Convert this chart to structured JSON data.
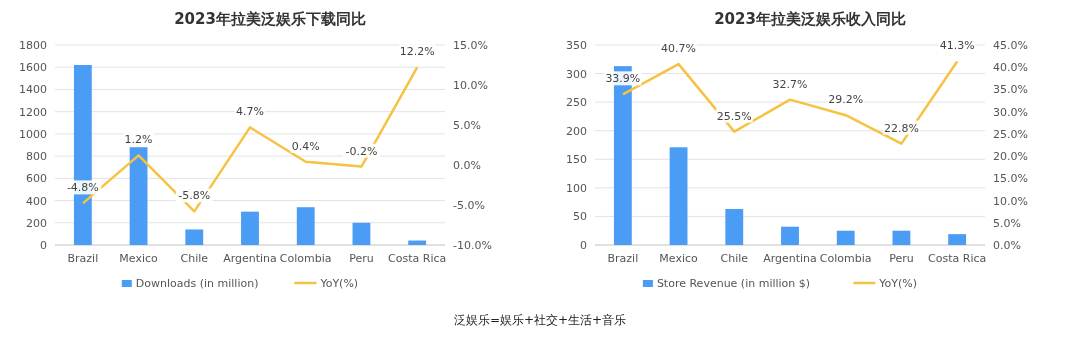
{
  "chart_data": [
    {
      "type": "bar",
      "title": "2023年拉美泛娱乐下载同比",
      "categories": [
        "Brazil",
        "Mexico",
        "Chile",
        "Argentina",
        "Colombia",
        "Peru",
        "Costa Rica"
      ],
      "series": [
        {
          "name": "Downloads (in million)",
          "color": "#4a9cf5",
          "values": [
            1620,
            880,
            140,
            300,
            340,
            200,
            40
          ]
        },
        {
          "name": "YoY(%)",
          "type": "line",
          "axis": "y2",
          "color": "#f5c242",
          "values": [
            -4.8,
            1.2,
            -5.8,
            4.7,
            0.4,
            -0.2,
            12.2
          ],
          "value_labels": [
            "-4.8%",
            "1.2%",
            "-5.8%",
            "4.7%",
            "0.4%",
            "-0.2%",
            "12.2%"
          ]
        }
      ],
      "ylim": [
        0,
        1800
      ],
      "yticks": [
        0,
        200,
        400,
        600,
        800,
        1000,
        1200,
        1400,
        1600,
        1800
      ],
      "y2lim": [
        -10,
        15
      ],
      "y2ticks": [
        {
          "value": -10,
          "label": "-10.0%"
        },
        {
          "value": -5,
          "label": "-5.0%"
        },
        {
          "value": 0,
          "label": "0.0%"
        },
        {
          "value": 5,
          "label": "5.0%"
        },
        {
          "value": 10,
          "label": "10.0%"
        },
        {
          "value": 15,
          "label": "15.0%"
        }
      ],
      "grid": "y",
      "legend": "bottom",
      "marker": "none",
      "annotations": [
        "泛娱乐=娱乐+社交+生活+音乐"
      ]
    },
    {
      "type": "bar",
      "title": "2023年拉美泛娱乐收入同比",
      "categories": [
        "Brazil",
        "Mexico",
        "Chile",
        "Argentina",
        "Colombia",
        "Peru",
        "Costa Rica"
      ],
      "series": [
        {
          "name": "Store Revenue (in million $)",
          "color": "#4a9cf5",
          "values": [
            313,
            171,
            63,
            32,
            25,
            25,
            19
          ]
        },
        {
          "name": "YoY(%)",
          "type": "line",
          "axis": "y2",
          "color": "#f5c242",
          "values": [
            33.9,
            40.7,
            25.5,
            32.7,
            29.2,
            22.8,
            41.3
          ],
          "value_labels": [
            "33.9%",
            "40.7%",
            "25.5%",
            "32.7%",
            "29.2%",
            "22.8%",
            "41.3%"
          ]
        }
      ],
      "ylim": [
        0,
        350
      ],
      "yticks": [
        0,
        50,
        100,
        150,
        200,
        250,
        300,
        350
      ],
      "y2lim": [
        0,
        45
      ],
      "y2ticks": [
        {
          "value": 0,
          "label": "0.0%"
        },
        {
          "value": 5,
          "label": "5.0%"
        },
        {
          "value": 10,
          "label": "10.0%"
        },
        {
          "value": 15,
          "label": "15.0%"
        },
        {
          "value": 20,
          "label": "20.0%"
        },
        {
          "value": 25,
          "label": "25.0%"
        },
        {
          "value": 30,
          "label": "30.0%"
        },
        {
          "value": 35,
          "label": "35.0%"
        },
        {
          "value": 40,
          "label": "40.0%"
        },
        {
          "value": 45,
          "label": "45.0%"
        }
      ],
      "grid": "y",
      "legend": "bottom",
      "marker": "none"
    }
  ]
}
